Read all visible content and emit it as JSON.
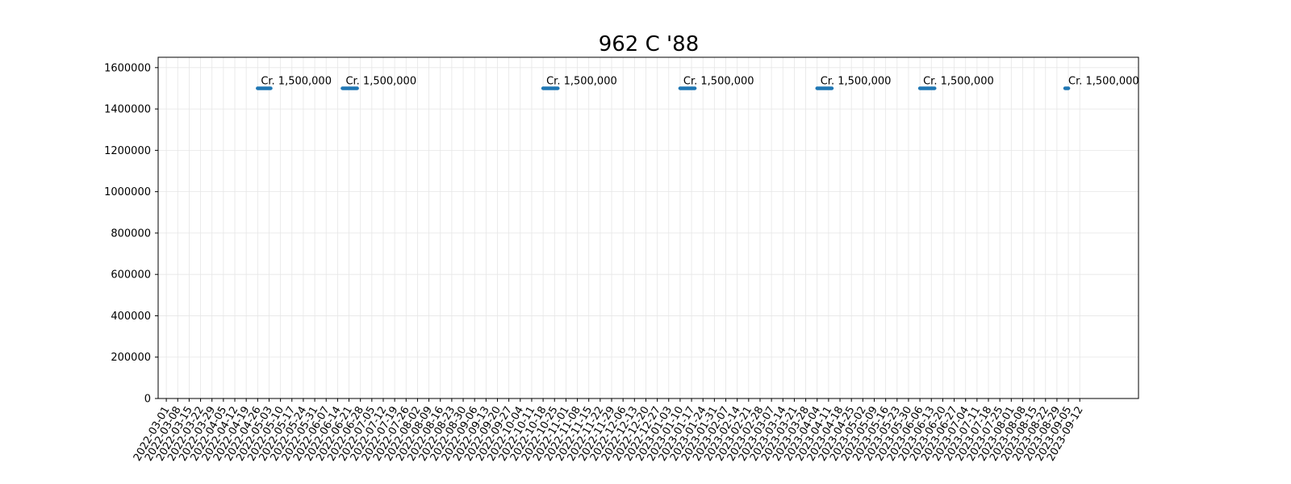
{
  "chart_data": {
    "type": "line",
    "title": "962 C '88",
    "xlabel": "",
    "ylabel": "",
    "ylim": [
      0,
      1650000
    ],
    "grid": true,
    "line_color": "#1f77b4",
    "y_ticks": [
      0,
      200000,
      400000,
      600000,
      800000,
      1000000,
      1200000,
      1400000,
      1600000
    ],
    "x_ticks": [
      "2022-03-01",
      "2022-03-08",
      "2022-03-15",
      "2022-03-22",
      "2022-03-29",
      "2022-04-05",
      "2022-04-12",
      "2022-04-19",
      "2022-04-26",
      "2022-05-03",
      "2022-05-10",
      "2022-05-17",
      "2022-05-24",
      "2022-05-31",
      "2022-06-07",
      "2022-06-14",
      "2022-06-21",
      "2022-06-28",
      "2022-07-05",
      "2022-07-12",
      "2022-07-19",
      "2022-07-26",
      "2022-08-02",
      "2022-08-09",
      "2022-08-16",
      "2022-08-23",
      "2022-08-30",
      "2022-09-06",
      "2022-09-13",
      "2022-09-20",
      "2022-09-27",
      "2022-10-04",
      "2022-10-11",
      "2022-10-18",
      "2022-10-25",
      "2022-11-01",
      "2022-11-08",
      "2022-11-15",
      "2022-11-22",
      "2022-11-29",
      "2022-12-06",
      "2022-12-13",
      "2022-12-20",
      "2022-12-27",
      "2023-01-03",
      "2023-01-10",
      "2023-01-17",
      "2023-01-24",
      "2023-01-31",
      "2023-02-07",
      "2023-02-14",
      "2023-02-21",
      "2023-02-28",
      "2023-03-07",
      "2023-03-14",
      "2023-03-21",
      "2023-03-28",
      "2023-04-04",
      "2023-04-11",
      "2023-04-18",
      "2023-04-25",
      "2023-05-02",
      "2023-05-09",
      "2023-05-16",
      "2023-05-23",
      "2023-05-30",
      "2023-06-06",
      "2023-06-13",
      "2023-06-20",
      "2023-06-27",
      "2023-07-04",
      "2023-07-11",
      "2023-07-18",
      "2023-07-25",
      "2023-08-01",
      "2023-08-08",
      "2023-08-15",
      "2023-08-22",
      "2023-08-29",
      "2023-09-05",
      "2023-09-12"
    ],
    "x_range": [
      "2022-02-24",
      "2023-10-18"
    ],
    "segments": [
      {
        "start": "2022-04-26",
        "end": "2022-05-04",
        "value": 1500000,
        "label": "Cr. 1,500,000"
      },
      {
        "start": "2022-06-17",
        "end": "2022-06-26",
        "value": 1500000,
        "label": "Cr. 1,500,000"
      },
      {
        "start": "2022-10-18",
        "end": "2022-10-27",
        "value": 1500000,
        "label": "Cr. 1,500,000"
      },
      {
        "start": "2023-01-10",
        "end": "2023-01-19",
        "value": 1500000,
        "label": "Cr. 1,500,000"
      },
      {
        "start": "2023-04-04",
        "end": "2023-04-13",
        "value": 1500000,
        "label": "Cr. 1,500,000"
      },
      {
        "start": "2023-06-06",
        "end": "2023-06-15",
        "value": 1500000,
        "label": "Cr. 1,500,000"
      },
      {
        "start": "2023-09-03",
        "end": "2023-09-05",
        "value": 1500000,
        "label": "Cr. 1,500,000"
      }
    ]
  }
}
